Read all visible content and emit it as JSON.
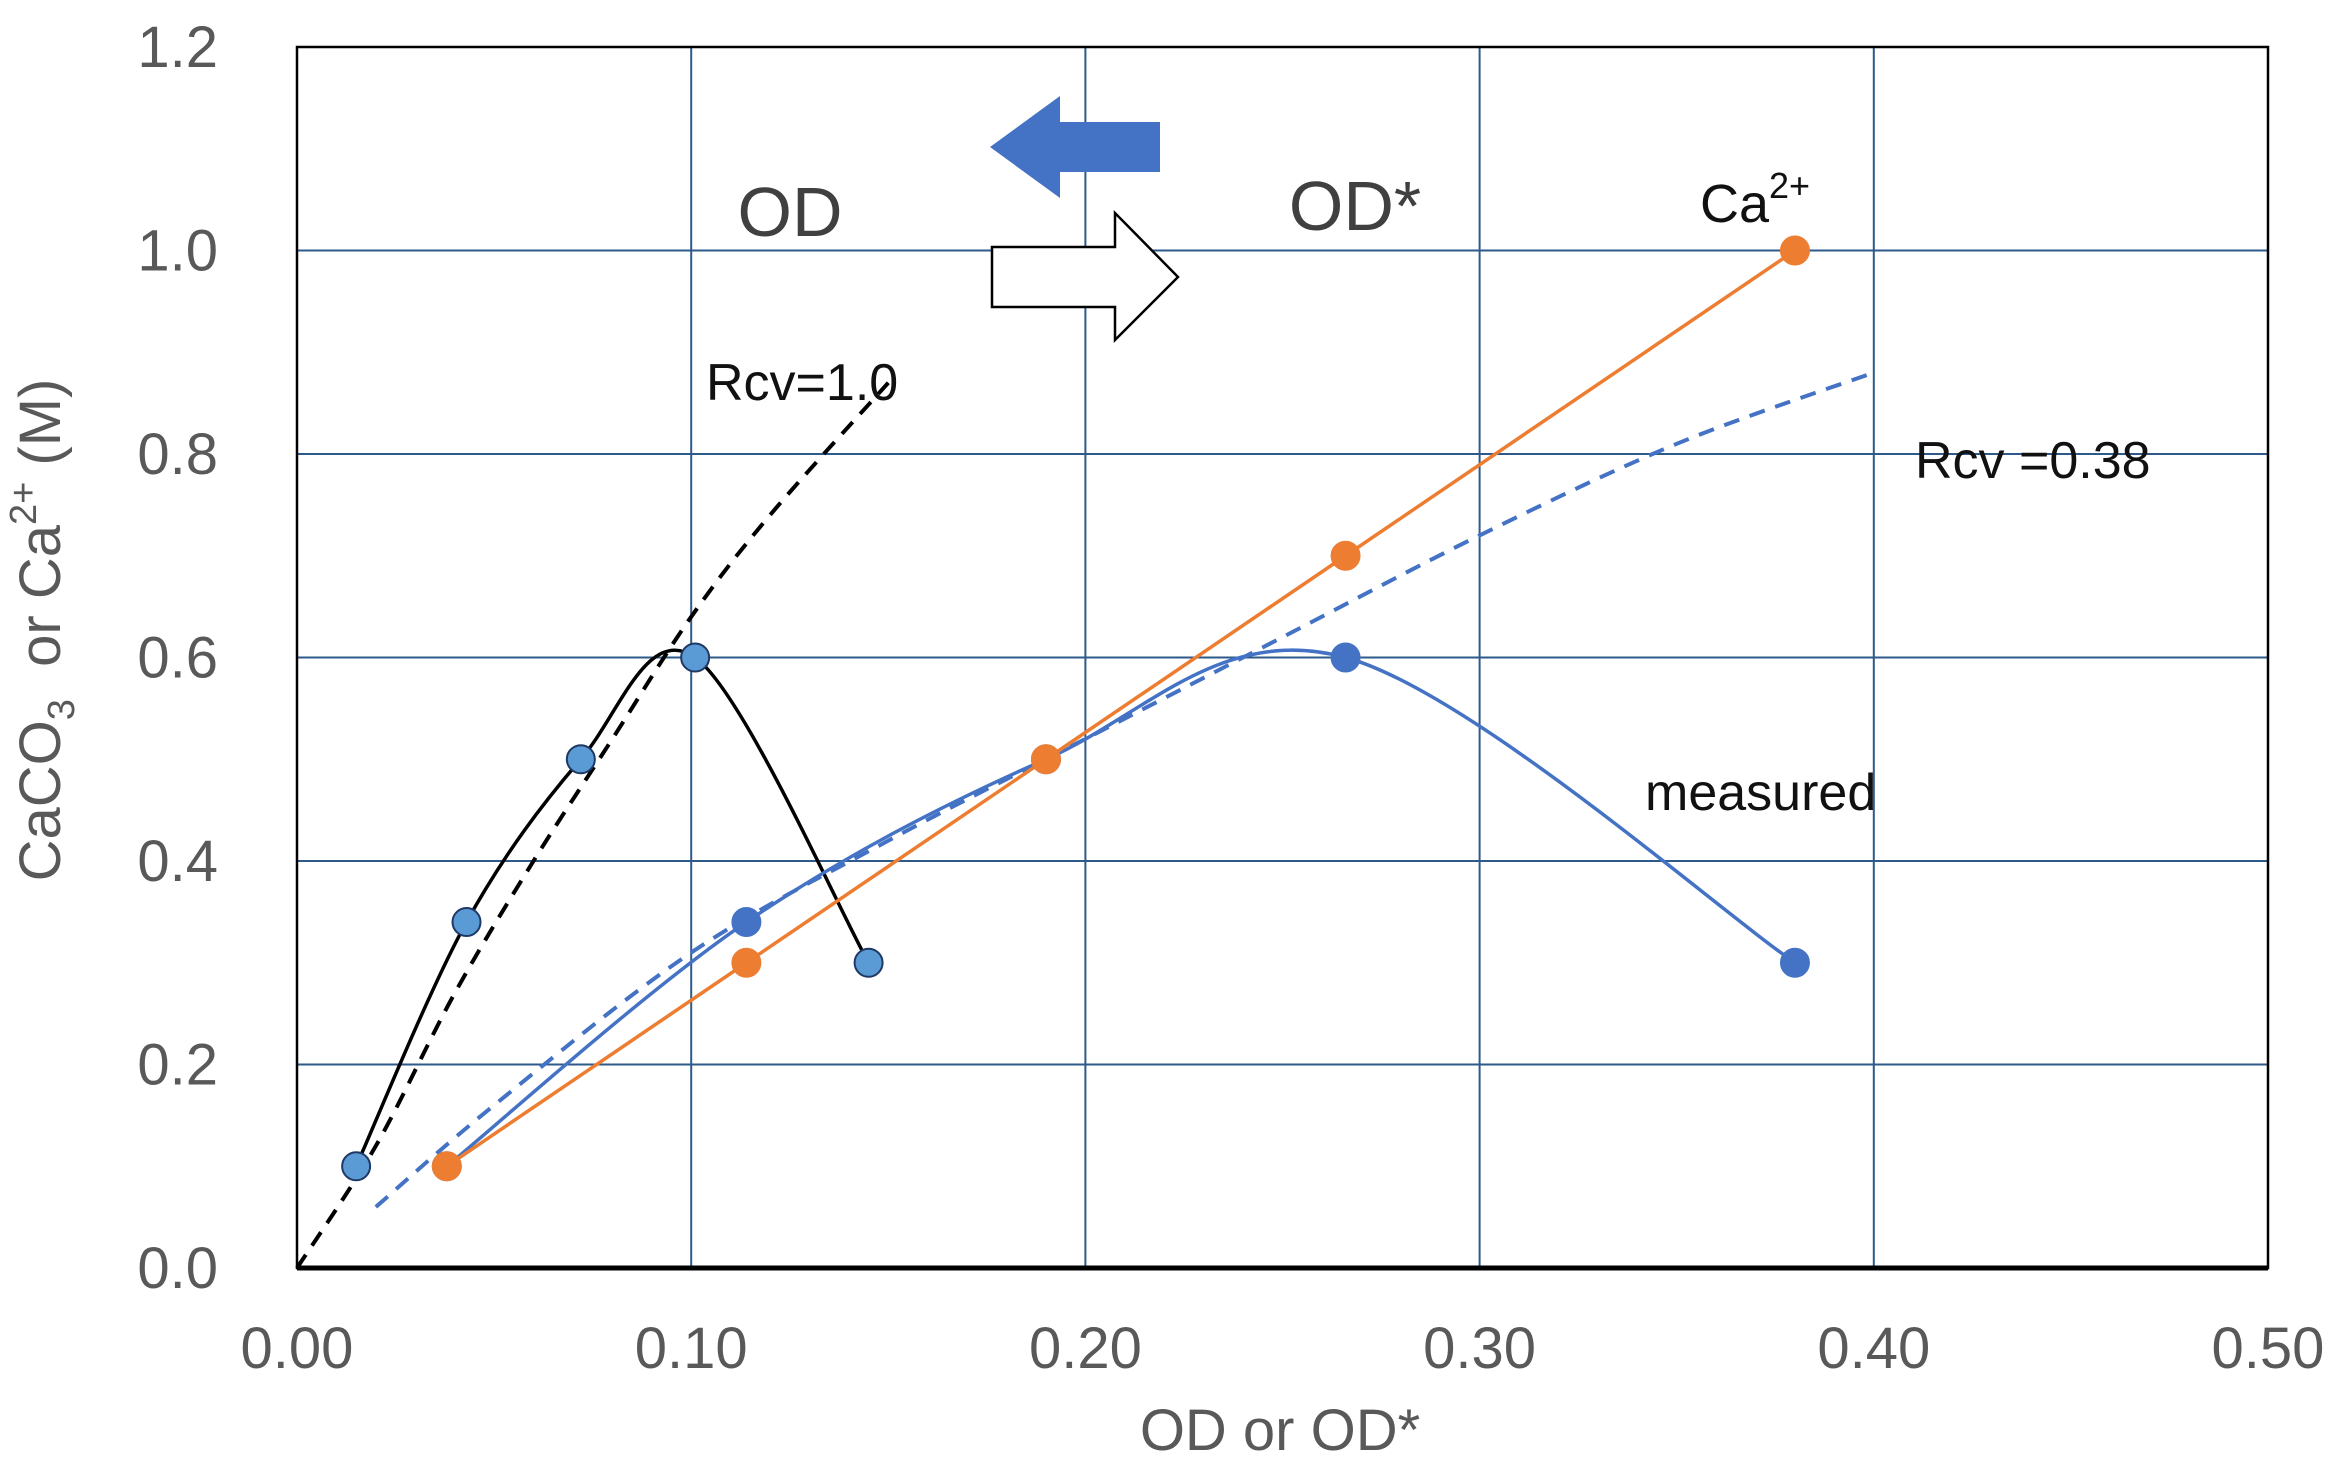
{
  "chart_data": {
    "type": "line",
    "xlabel": "OD or OD*",
    "ylabel": {
      "pre": "CaCO",
      "sub": "3",
      "mid": "  or Ca",
      "sup": "2+",
      "post": " (M)"
    },
    "xlim": [
      0.0,
      0.5
    ],
    "ylim": [
      0.0,
      1.2
    ],
    "x_ticks": [
      "0.00",
      "0.10",
      "0.20",
      "0.30",
      "0.40",
      "0.50"
    ],
    "y_ticks": [
      "0.0",
      "0.2",
      "0.4",
      "0.6",
      "0.8",
      "1.0",
      "1.2"
    ],
    "grid": true,
    "series": [
      {
        "color": "#000000",
        "marker_color": "#5b9bd5",
        "smooth": true,
        "points": [
          [
            0.015,
            0.1
          ],
          [
            0.043,
            0.34
          ],
          [
            0.072,
            0.5
          ],
          [
            0.101,
            0.6
          ],
          [
            0.145,
            0.3
          ]
        ]
      },
      {
        "color": "#4472c4",
        "marker_color": "#4472c4",
        "smooth": true,
        "points": [
          [
            0.038,
            0.1
          ],
          [
            0.114,
            0.34
          ],
          [
            0.19,
            0.5
          ],
          [
            0.266,
            0.6
          ],
          [
            0.38,
            0.3
          ]
        ]
      },
      {
        "color": "#ed7d31",
        "marker_color": "#ed7d31",
        "smooth": false,
        "points": [
          [
            0.038,
            0.1
          ],
          [
            0.114,
            0.3
          ],
          [
            0.19,
            0.5
          ],
          [
            0.266,
            0.7
          ],
          [
            0.38,
            1.0
          ]
        ]
      }
    ],
    "fit_curves": [
      {
        "color": "#000000",
        "points": [
          [
            0.0,
            0.0
          ],
          [
            0.02,
            0.12
          ],
          [
            0.04,
            0.27
          ],
          [
            0.06,
            0.4
          ],
          [
            0.08,
            0.52
          ],
          [
            0.1,
            0.64
          ],
          [
            0.12,
            0.74
          ],
          [
            0.15,
            0.87
          ]
        ]
      },
      {
        "color": "#4472c4",
        "points": [
          [
            0.02,
            0.06
          ],
          [
            0.05,
            0.16
          ],
          [
            0.1,
            0.31
          ],
          [
            0.15,
            0.42
          ],
          [
            0.2,
            0.52
          ],
          [
            0.25,
            0.62
          ],
          [
            0.3,
            0.72
          ],
          [
            0.35,
            0.81
          ],
          [
            0.4,
            0.88
          ]
        ]
      }
    ],
    "annotations": {
      "od": "OD",
      "od_star": "OD*",
      "rcv_1": "Rcv=1.0",
      "rcv_038": "Rcv =0.38",
      "ca_base": "Ca",
      "ca_sup": "2+",
      "measured": "measured"
    },
    "arrows": {
      "left_color": "#4472c4",
      "right_fill": "#ffffff",
      "right_stroke": "#000000"
    },
    "colors": {
      "grid": "#2e5a8a",
      "frame": "#000000",
      "tick_text": "#595959"
    }
  }
}
